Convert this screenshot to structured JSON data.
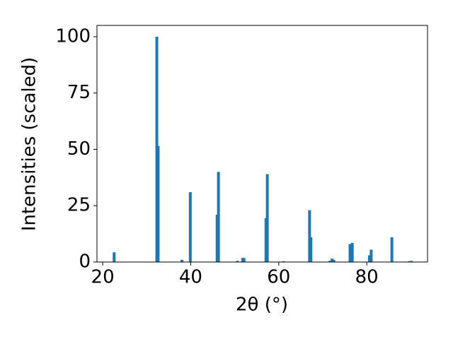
{
  "chart_data": {
    "type": "bar",
    "x_label": "2θ (°)",
    "y_label": "Intensities (scaled)",
    "color": "#1f77b4",
    "x": [
      22.6,
      32.3,
      32.6,
      38.0,
      39.9,
      46.0,
      46.3,
      50.6,
      51.8,
      52.1,
      57.1,
      57.4,
      61.1,
      67.0,
      67.3,
      71.6,
      72.1,
      72.5,
      76.2,
      76.7,
      80.6,
      81.0,
      85.7,
      89.6,
      90.1
    ],
    "values": [
      4.3,
      100,
      51.5,
      1,
      31,
      21,
      40,
      0.5,
      1.8,
      1.8,
      19.5,
      39,
      0.3,
      23,
      11,
      0.5,
      1.5,
      1,
      8,
      8.5,
      3,
      5.5,
      11,
      0.3,
      0.5
    ],
    "xlim": [
      18.7,
      93.8
    ],
    "ylim": [
      0,
      105
    ],
    "xticks": [
      20,
      40,
      60,
      80
    ],
    "yticks": [
      0,
      25,
      50,
      75,
      100
    ]
  }
}
